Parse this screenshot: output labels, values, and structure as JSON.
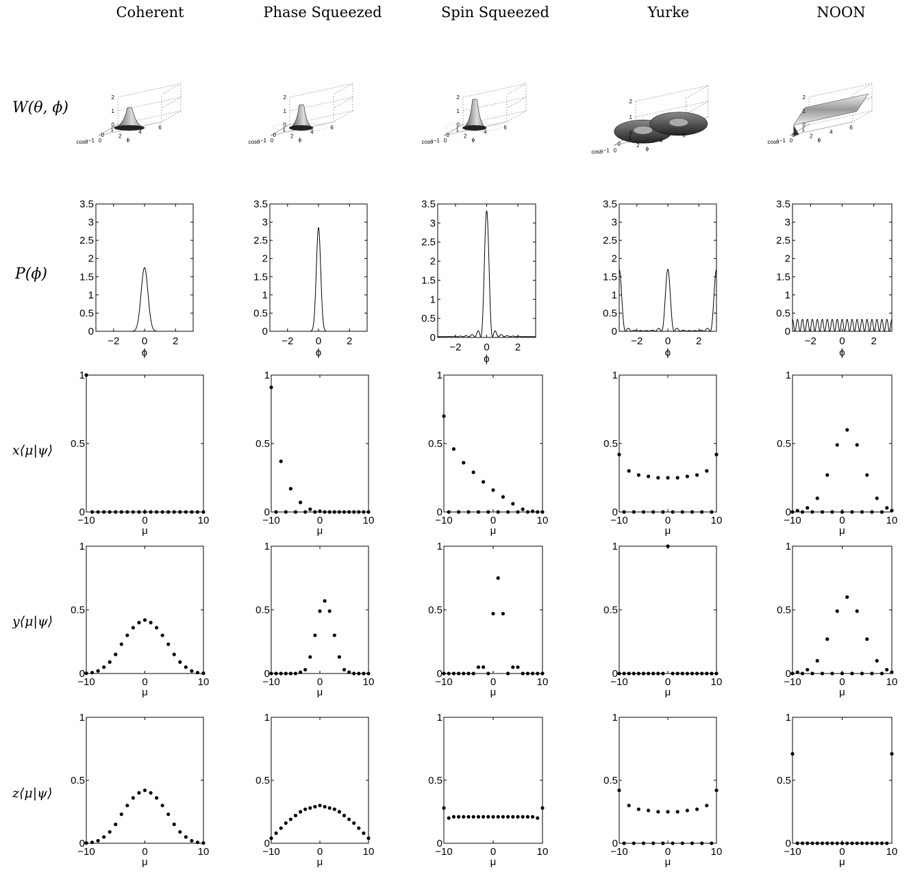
{
  "columns": [
    "Coherent",
    "Phase Squeezed",
    "Spin Squeezed",
    "Yurke",
    "NOON"
  ],
  "row_labels": {
    "wigner": "W(θ, ϕ)",
    "phase": "P(ϕ)",
    "x": "x⟨μ|ψ⟩",
    "y": "y⟨μ|ψ⟩",
    "z": "z⟨μ|ψ⟩"
  },
  "wigner_axis": {
    "z_ticks": [
      "0",
      "1",
      "2"
    ],
    "costheta_ticks": [
      "1",
      "0",
      "−1"
    ],
    "phi_ticks": [
      "0",
      "2",
      "4",
      "6"
    ],
    "costheta_label": "cosθ",
    "phi_label": "ϕ"
  },
  "chart_data": [
    {
      "type": "line",
      "title": "",
      "xlabel": "ϕ",
      "ylabel": "P(ϕ)",
      "xlim": [
        -3.14,
        3.14
      ],
      "ylim": [
        0,
        3.5
      ],
      "x_ticks": [
        -2,
        0,
        2
      ],
      "y_ticks": [
        0,
        0.5,
        1,
        1.5,
        2,
        2.5,
        3,
        3.5
      ],
      "series": [
        {
          "column": "Coherent",
          "kind": "gauss",
          "peak": 1.75,
          "sigma": 0.22
        },
        {
          "column": "Phase Squeezed",
          "kind": "gauss",
          "peak": 2.85,
          "sigma": 0.14
        },
        {
          "column": "Spin Squeezed",
          "kind": "sinc",
          "peak": 3.3,
          "width": 0.12,
          "y_offset": 0.02
        },
        {
          "column": "Yurke",
          "kind": "yurke",
          "peak": 1.7,
          "edge": 1.7,
          "width": 0.13
        },
        {
          "column": "NOON",
          "kind": "cos",
          "amplitude": 0.33,
          "oscillations": 20
        }
      ]
    },
    {
      "type": "scatter",
      "basis": "x",
      "title": "",
      "xlabel": "μ",
      "ylabel": "x⟨μ|ψ⟩",
      "xlim": [
        -10,
        10
      ],
      "ylim": [
        0,
        1
      ],
      "x_ticks": [
        -10,
        0,
        10
      ],
      "y_ticks": [
        0,
        0.5,
        1
      ],
      "x": [
        -10,
        -9,
        -8,
        -7,
        -6,
        -5,
        -4,
        -3,
        -2,
        -1,
        0,
        1,
        2,
        3,
        4,
        5,
        6,
        7,
        8,
        9,
        10
      ],
      "series": [
        {
          "column": "Coherent",
          "values": [
            1,
            0,
            0,
            0,
            0,
            0,
            0,
            0,
            0,
            0,
            0,
            0,
            0,
            0,
            0,
            0,
            0,
            0,
            0,
            0,
            0
          ]
        },
        {
          "column": "Phase Squeezed",
          "values": [
            0.91,
            0,
            0.37,
            0,
            0.17,
            0,
            0.07,
            0,
            0.02,
            0,
            0.005,
            0,
            0,
            0,
            0,
            0,
            0,
            0,
            0,
            0,
            0
          ]
        },
        {
          "column": "Spin Squeezed",
          "values": [
            0.7,
            0,
            0.46,
            0,
            0.36,
            0,
            0.29,
            0,
            0.22,
            0,
            0.16,
            0,
            0.11,
            0,
            0.06,
            0,
            0.02,
            0,
            0.005,
            0,
            0
          ]
        },
        {
          "column": "Yurke",
          "values": [
            0.42,
            0,
            0.3,
            0,
            0.27,
            0,
            0.26,
            0,
            0.25,
            0,
            0.25,
            0,
            0.25,
            0,
            0.26,
            0,
            0.27,
            0,
            0.3,
            0,
            0.42
          ]
        },
        {
          "column": "NOON",
          "values": [
            0,
            0.01,
            0,
            0.03,
            0,
            0.1,
            0,
            0.27,
            0,
            0.49,
            0,
            0.6,
            0,
            0.49,
            0,
            0.27,
            0,
            0.1,
            0,
            0.03,
            0.01
          ]
        }
      ]
    },
    {
      "type": "scatter",
      "basis": "y",
      "title": "",
      "xlabel": "μ",
      "ylabel": "y⟨μ|ψ⟩",
      "xlim": [
        -10,
        10
      ],
      "ylim": [
        0,
        1
      ],
      "x_ticks": [
        -10,
        0,
        10
      ],
      "y_ticks": [
        0,
        0.5,
        1
      ],
      "x": [
        -10,
        -9,
        -8,
        -7,
        -6,
        -5,
        -4,
        -3,
        -2,
        -1,
        0,
        1,
        2,
        3,
        4,
        5,
        6,
        7,
        8,
        9,
        10
      ],
      "series": [
        {
          "column": "Coherent",
          "values": [
            0.002,
            0.007,
            0.02,
            0.05,
            0.09,
            0.15,
            0.23,
            0.3,
            0.36,
            0.4,
            0.42,
            0.4,
            0.36,
            0.3,
            0.23,
            0.15,
            0.09,
            0.05,
            0.02,
            0.007,
            0.002
          ]
        },
        {
          "column": "Phase Squeezed",
          "values": [
            0,
            0,
            0,
            0,
            0,
            0,
            0.01,
            0.03,
            0.13,
            0.3,
            0.49,
            0.57,
            0.49,
            0.3,
            0.13,
            0.03,
            0.01,
            0,
            0,
            0,
            0
          ]
        },
        {
          "column": "Spin Squeezed",
          "values": [
            0,
            0,
            0,
            0,
            0,
            0,
            0,
            0.05,
            0.05,
            0,
            0.47,
            0.75,
            0.47,
            0,
            0.05,
            0.05,
            0,
            0,
            0,
            0,
            0
          ]
        },
        {
          "column": "Yurke",
          "values": [
            0,
            0,
            0,
            0,
            0,
            0,
            0,
            0,
            0,
            0,
            1,
            0,
            0,
            0,
            0,
            0,
            0,
            0,
            0,
            0,
            0
          ]
        },
        {
          "column": "NOON",
          "values": [
            0,
            0.01,
            0,
            0.03,
            0,
            0.1,
            0,
            0.27,
            0,
            0.49,
            0,
            0.6,
            0,
            0.49,
            0,
            0.27,
            0,
            0.1,
            0,
            0.03,
            0.01
          ]
        }
      ]
    },
    {
      "type": "scatter",
      "basis": "z",
      "title": "",
      "xlabel": "μ",
      "ylabel": "z⟨μ|ψ⟩",
      "xlim": [
        -10,
        10
      ],
      "ylim": [
        0,
        1
      ],
      "x_ticks": [
        -10,
        0,
        10
      ],
      "y_ticks": [
        0,
        0.5,
        1
      ],
      "x": [
        -10,
        -9,
        -8,
        -7,
        -6,
        -5,
        -4,
        -3,
        -2,
        -1,
        0,
        1,
        2,
        3,
        4,
        5,
        6,
        7,
        8,
        9,
        10
      ],
      "series": [
        {
          "column": "Coherent",
          "values": [
            0.002,
            0.007,
            0.02,
            0.05,
            0.09,
            0.15,
            0.23,
            0.3,
            0.36,
            0.4,
            0.42,
            0.4,
            0.36,
            0.3,
            0.23,
            0.15,
            0.09,
            0.05,
            0.02,
            0.007,
            0.002
          ]
        },
        {
          "column": "Phase Squeezed",
          "values": [
            0.04,
            0.08,
            0.12,
            0.16,
            0.19,
            0.22,
            0.25,
            0.27,
            0.28,
            0.29,
            0.3,
            0.29,
            0.28,
            0.27,
            0.25,
            0.22,
            0.19,
            0.16,
            0.12,
            0.08,
            0.04
          ]
        },
        {
          "column": "Spin Squeezed",
          "values": [
            0.28,
            0.2,
            0.21,
            0.21,
            0.21,
            0.21,
            0.21,
            0.21,
            0.21,
            0.21,
            0.21,
            0.21,
            0.21,
            0.21,
            0.21,
            0.21,
            0.21,
            0.21,
            0.21,
            0.2,
            0.28
          ]
        },
        {
          "column": "Yurke",
          "values": [
            0.42,
            0,
            0.3,
            0,
            0.27,
            0,
            0.26,
            0,
            0.25,
            0,
            0.25,
            0,
            0.25,
            0,
            0.26,
            0,
            0.27,
            0,
            0.3,
            0,
            0.42
          ]
        },
        {
          "column": "NOON",
          "values": [
            0.71,
            0,
            0,
            0,
            0,
            0,
            0,
            0,
            0,
            0,
            0,
            0,
            0,
            0,
            0,
            0,
            0,
            0,
            0,
            0,
            0.71
          ]
        }
      ]
    }
  ]
}
